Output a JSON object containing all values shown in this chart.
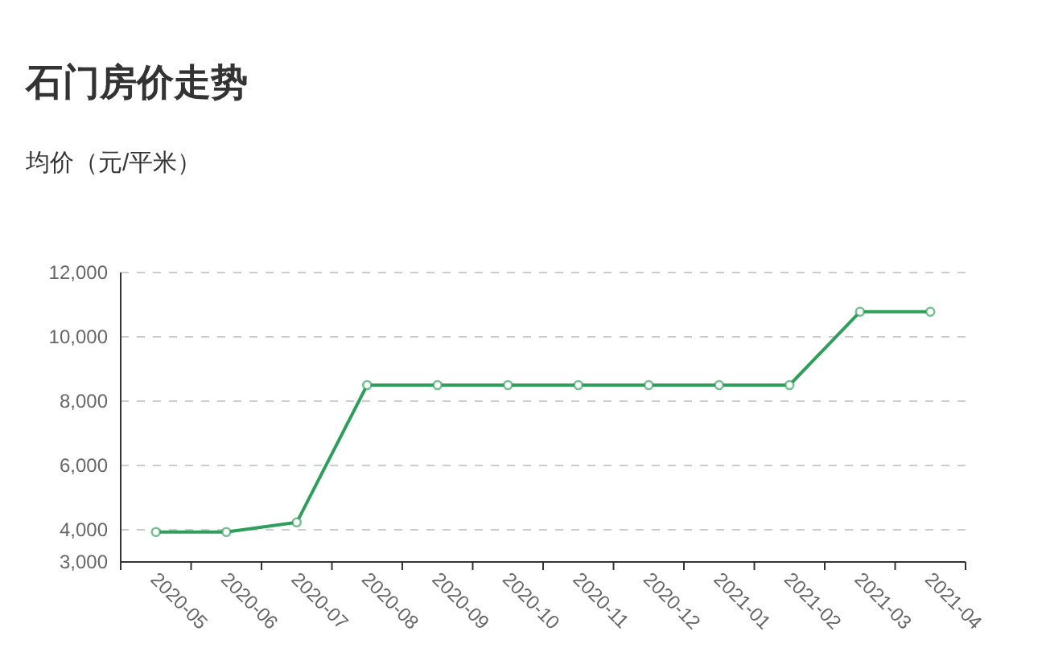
{
  "chart_data": {
    "type": "line",
    "title": "石门房价走势",
    "subtitle": "均价（元/平米）",
    "categories": [
      "2020-05",
      "2020-06",
      "2020-07",
      "2020-08",
      "2020-09",
      "2020-10",
      "2020-11",
      "2020-12",
      "2021-01",
      "2021-02",
      "2021-03",
      "2021-04"
    ],
    "series": [
      {
        "color": "#2e9e5b",
        "values": [
          3930,
          3930,
          4230,
          8500,
          8500,
          8500,
          8500,
          8500,
          8500,
          8500,
          10780,
          10780
        ]
      }
    ],
    "ylim": [
      3000,
      12000
    ],
    "yticks": [
      {
        "value": 3000,
        "label": "3,000"
      },
      {
        "value": 4000,
        "label": "4,000"
      },
      {
        "value": 6000,
        "label": "6,000"
      },
      {
        "value": 8000,
        "label": "8,000"
      },
      {
        "value": 10000,
        "label": "10,000"
      },
      {
        "value": 12000,
        "label": "12,000"
      }
    ],
    "grid": "y",
    "marker": "circle",
    "line_style": "solid"
  }
}
